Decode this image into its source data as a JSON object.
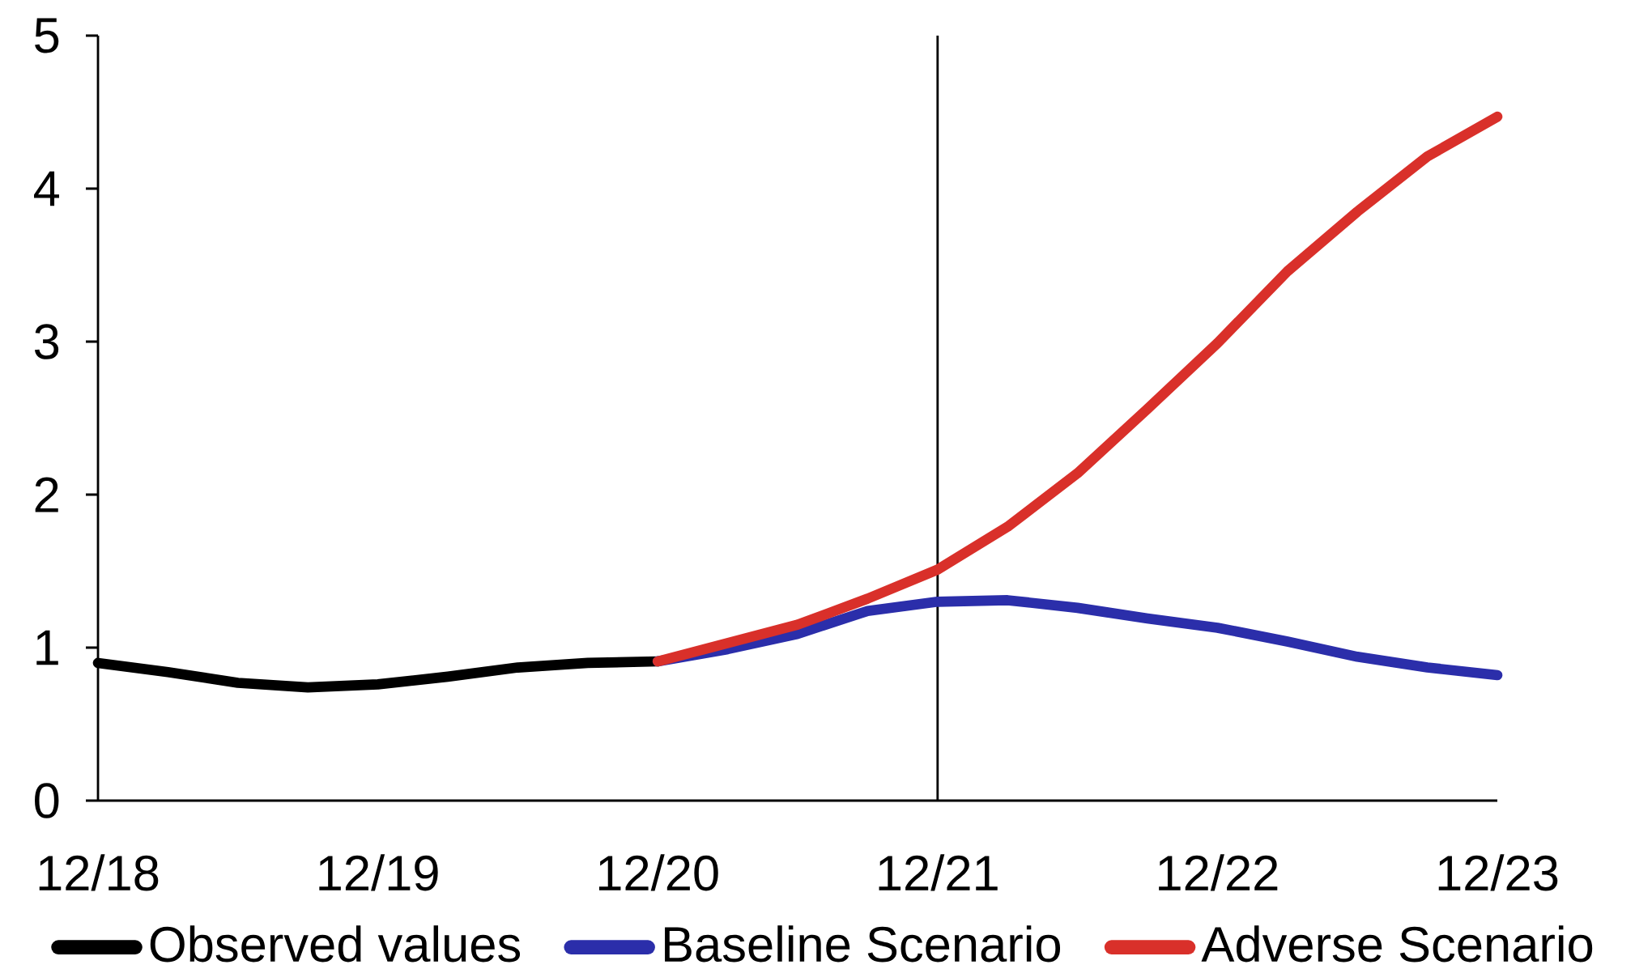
{
  "chart_data": {
    "type": "line",
    "categories": [
      "12/18",
      null,
      null,
      null,
      "12/19",
      null,
      null,
      null,
      "12/20",
      null,
      null,
      null,
      "12/21",
      null,
      null,
      null,
      "12/22",
      null,
      null,
      null,
      "12/23"
    ],
    "series": [
      {
        "name": "Observed values",
        "color": "#000000",
        "values": [
          0.9,
          0.84,
          0.77,
          0.74,
          0.76,
          0.81,
          0.87,
          0.9,
          0.91,
          null,
          null,
          null,
          null,
          null,
          null,
          null,
          null,
          null,
          null,
          null,
          null
        ]
      },
      {
        "name": "Baseline Scenario",
        "color": "#2b2eaa",
        "values": [
          null,
          null,
          null,
          null,
          null,
          null,
          null,
          null,
          0.91,
          0.99,
          1.09,
          1.24,
          1.3,
          1.31,
          1.26,
          1.19,
          1.13,
          1.04,
          0.94,
          0.87,
          0.82
        ]
      },
      {
        "name": "Adverse Scenario",
        "color": "#d9302a",
        "values": [
          null,
          null,
          null,
          null,
          null,
          null,
          null,
          null,
          0.91,
          1.03,
          1.15,
          1.32,
          1.51,
          1.79,
          2.14,
          2.56,
          2.99,
          3.46,
          3.85,
          4.21,
          4.47
        ]
      }
    ],
    "ylim": [
      0,
      5
    ],
    "yticks": [
      0,
      1,
      2,
      3,
      4,
      5
    ],
    "grid": false,
    "legend": "bottom",
    "marker": "none",
    "line_style": "solid",
    "ref_lines": [
      {
        "axis": "x",
        "value": "12/21",
        "color": "#000000"
      }
    ]
  }
}
